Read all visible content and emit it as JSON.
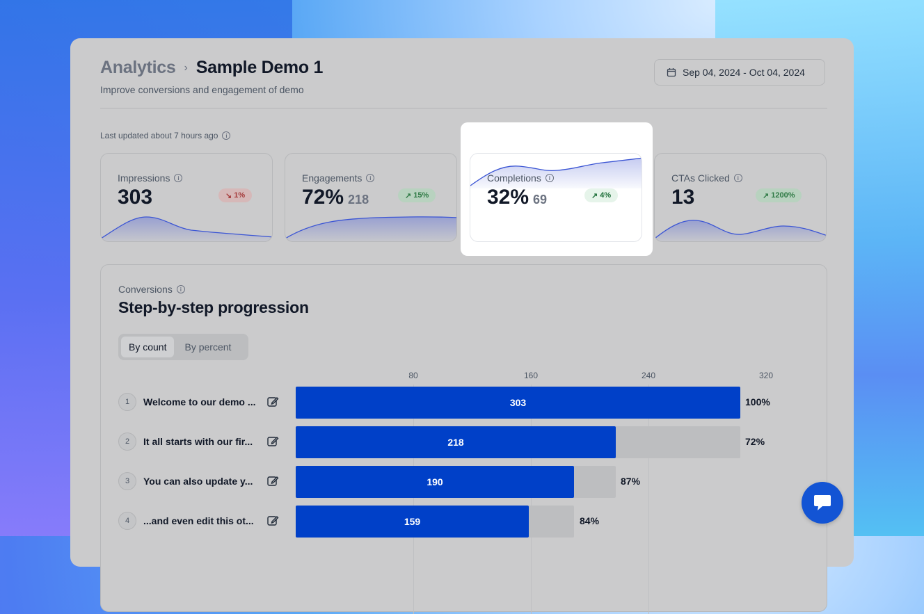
{
  "breadcrumb": {
    "root": "Analytics",
    "current": "Sample Demo 1"
  },
  "subtitle": "Improve conversions and engagement of demo",
  "date_range": "Sep 04, 2024 - Oct 04, 2024",
  "last_updated": "Last updated about 7 hours ago",
  "cards": [
    {
      "label": "Impressions",
      "value": "303",
      "sub": "",
      "badge": "1%",
      "trend": "down"
    },
    {
      "label": "Engagements",
      "value": "72%",
      "sub": "218",
      "badge": "15%",
      "trend": "up"
    },
    {
      "label": "Completions",
      "value": "32%",
      "sub": "69",
      "badge": "4%",
      "trend": "up"
    },
    {
      "label": "CTAs Clicked",
      "value": "13",
      "sub": "",
      "badge": "1200%",
      "trend": "up"
    }
  ],
  "conversions": {
    "label": "Conversions",
    "title": "Step-by-step progression",
    "toggle": {
      "by_count": "By count",
      "by_percent": "By percent",
      "selected": "By count"
    },
    "axis_ticks": [
      "80",
      "160",
      "240",
      "320"
    ],
    "steps": [
      {
        "num": "1",
        "name": "Welcome to our demo ...",
        "count": "303",
        "pct": "100%"
      },
      {
        "num": "2",
        "name": "It all starts with our fir...",
        "count": "218",
        "pct": "72%"
      },
      {
        "num": "3",
        "name": "You can also update y...",
        "count": "190",
        "pct": "87%"
      },
      {
        "num": "4",
        "name": "...and even edit this ot...",
        "count": "159",
        "pct": "84%"
      }
    ]
  },
  "colors": {
    "accent": "#0040c8",
    "chat": "#1354d4",
    "panel": "#cbcbcc"
  },
  "icons": {
    "date": "calendar-icon",
    "info": "info-icon",
    "edit": "edit-icon",
    "chat": "chat-icon"
  }
}
